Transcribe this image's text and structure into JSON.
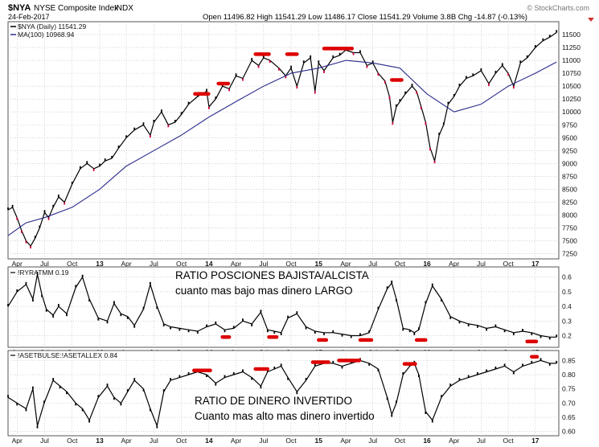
{
  "header": {
    "symbol": "$NYA",
    "name": "NYSE Composite Index",
    "exchange": "INDX",
    "date": "24-Feb-2017",
    "quote": "Open 11496.82  High 11541.29  Low 11486.17  Close 11541.29  Volume 3.8B  Chg -14.87 (-0.13%)",
    "watermark": "© StockCharts.com"
  },
  "colors": {
    "price": "#000000",
    "down": "#cc0033",
    "ma": "#2a2a8c",
    "ind": "#000000",
    "marker": "#dd0000",
    "grid": "#b8b8b8",
    "frame": "#555555",
    "axis_text": "#111111",
    "note_text": "#000000"
  },
  "chart_data": [
    {
      "type": "line",
      "panel": "main",
      "legend": [
        "$NYA (Daily) 11541.29",
        "MA(100) 10968.94"
      ],
      "ylim": [
        7150,
        11750
      ],
      "yticks": [
        7250,
        7500,
        7750,
        8000,
        8250,
        8500,
        8750,
        9000,
        9250,
        9500,
        9750,
        10000,
        10250,
        10500,
        10750,
        11000,
        11250,
        11500
      ],
      "x_tick_labels": [
        "Apr",
        "Jul",
        "Oct",
        "13",
        "Apr",
        "Jul",
        "Oct",
        "14",
        "Apr",
        "Jul",
        "Oct",
        "15",
        "Apr",
        "Jul",
        "Oct",
        "16",
        "Apr",
        "Jul",
        "Oct",
        "17"
      ],
      "x_tick_pos": [
        0.02,
        0.081,
        0.142,
        0.203,
        0.262,
        0.323,
        0.384,
        0.445,
        0.505,
        0.566,
        0.627,
        0.688,
        0.748,
        0.808,
        0.868,
        0.928,
        0.988,
        1.048,
        1.108,
        1.168
      ],
      "series": [
        {
          "name": "$NYA (Daily)",
          "x": [
            0.0,
            0.01,
            0.02,
            0.03,
            0.04,
            0.05,
            0.06,
            0.07,
            0.081,
            0.09,
            0.1,
            0.112,
            0.125,
            0.142,
            0.16,
            0.175,
            0.19,
            0.203,
            0.215,
            0.23,
            0.245,
            0.262,
            0.28,
            0.3,
            0.315,
            0.323,
            0.34,
            0.355,
            0.37,
            0.384,
            0.4,
            0.42,
            0.44,
            0.445,
            0.46,
            0.475,
            0.49,
            0.505,
            0.52,
            0.54,
            0.555,
            0.566,
            0.58,
            0.6,
            0.615,
            0.627,
            0.64,
            0.655,
            0.67,
            0.68,
            0.688,
            0.7,
            0.72,
            0.735,
            0.748,
            0.765,
            0.78,
            0.795,
            0.808,
            0.82,
            0.835,
            0.845,
            0.852,
            0.86,
            0.868,
            0.88,
            0.895,
            0.905,
            0.915,
            0.925,
            0.935,
            0.945,
            0.955,
            0.965,
            0.975,
            0.988,
            1.0,
            1.015,
            1.03,
            1.048,
            1.065,
            1.08,
            1.095,
            1.108,
            1.12,
            1.135,
            1.15,
            1.168,
            1.185,
            1.2,
            1.215
          ],
          "values": [
            8100,
            8150,
            7950,
            7700,
            7500,
            7400,
            7550,
            7750,
            8050,
            7950,
            8150,
            8350,
            8250,
            8600,
            8900,
            9000,
            8900,
            8950,
            9050,
            9100,
            9300,
            9500,
            9650,
            9750,
            9550,
            9800,
            10000,
            9750,
            9800,
            9950,
            10150,
            10300,
            10400,
            10100,
            10250,
            10500,
            10450,
            10700,
            10650,
            11000,
            10900,
            11050,
            11000,
            10850,
            10700,
            10850,
            10500,
            10950,
            11050,
            10400,
            10950,
            10800,
            11050,
            11100,
            11200,
            11150,
            11150,
            10900,
            10950,
            10750,
            10600,
            10300,
            9800,
            10100,
            10200,
            10350,
            10500,
            10400,
            10100,
            9800,
            9300,
            9050,
            9550,
            9750,
            10150,
            10300,
            10500,
            10650,
            10700,
            10800,
            10550,
            10750,
            10900,
            10750,
            10500,
            10950,
            11050,
            11250,
            11380,
            11450,
            11541
          ]
        },
        {
          "name": "MA(100)",
          "x": [
            0.0,
            0.04,
            0.081,
            0.142,
            0.203,
            0.262,
            0.323,
            0.384,
            0.445,
            0.505,
            0.566,
            0.627,
            0.688,
            0.748,
            0.808,
            0.868,
            0.928,
            0.988,
            1.048,
            1.108,
            1.168,
            1.215
          ],
          "values": [
            7600,
            7850,
            7950,
            8150,
            8500,
            8950,
            9250,
            9550,
            9900,
            10200,
            10500,
            10750,
            10850,
            11000,
            10950,
            10850,
            10350,
            10000,
            10150,
            10500,
            10750,
            10969
          ]
        }
      ],
      "markers": [
        {
          "x0": 0.414,
          "x1": 0.444,
          "y": 10350
        },
        {
          "x0": 0.466,
          "x1": 0.488,
          "y": 10550
        },
        {
          "x0": 0.548,
          "x1": 0.578,
          "y": 11120
        },
        {
          "x0": 0.618,
          "x1": 0.64,
          "y": 11120
        },
        {
          "x0": 0.7,
          "x1": 0.762,
          "y": 11230
        },
        {
          "x0": 0.85,
          "x1": 0.872,
          "y": 10620
        }
      ]
    },
    {
      "type": "line",
      "panel": "ryratmm",
      "legend": "!RYRATMM 0.19",
      "annotation_title": "RATIO POSCIONES BAJISTA/ALCISTA",
      "annotation_subtitle": "cuanto mas bajo mas dinero LARGO",
      "ylim": [
        0.12,
        0.67
      ],
      "yticks": [
        0.2,
        0.3,
        0.4,
        0.5,
        0.6
      ],
      "series": [
        {
          "name": "!RYRATMM",
          "x": [
            0.0,
            0.02,
            0.04,
            0.055,
            0.065,
            0.075,
            0.085,
            0.1,
            0.112,
            0.13,
            0.15,
            0.165,
            0.18,
            0.2,
            0.22,
            0.235,
            0.25,
            0.265,
            0.28,
            0.3,
            0.315,
            0.33,
            0.345,
            0.36,
            0.38,
            0.4,
            0.42,
            0.44,
            0.46,
            0.48,
            0.5,
            0.52,
            0.54,
            0.56,
            0.575,
            0.59,
            0.605,
            0.62,
            0.64,
            0.66,
            0.68,
            0.7,
            0.72,
            0.74,
            0.76,
            0.78,
            0.8,
            0.82,
            0.84,
            0.85,
            0.86,
            0.875,
            0.89,
            0.9,
            0.91,
            0.925,
            0.94,
            0.96,
            0.98,
            1.0,
            1.02,
            1.04,
            1.06,
            1.08,
            1.1,
            1.12,
            1.14,
            1.16,
            1.18,
            1.2,
            1.215
          ],
          "values": [
            0.4,
            0.5,
            0.55,
            0.45,
            0.62,
            0.48,
            0.38,
            0.34,
            0.4,
            0.35,
            0.53,
            0.6,
            0.45,
            0.32,
            0.3,
            0.42,
            0.35,
            0.33,
            0.27,
            0.38,
            0.55,
            0.4,
            0.28,
            0.26,
            0.25,
            0.24,
            0.23,
            0.26,
            0.28,
            0.24,
            0.25,
            0.3,
            0.28,
            0.36,
            0.24,
            0.23,
            0.22,
            0.32,
            0.35,
            0.26,
            0.23,
            0.22,
            0.22,
            0.21,
            0.2,
            0.2,
            0.22,
            0.38,
            0.52,
            0.56,
            0.45,
            0.25,
            0.24,
            0.22,
            0.24,
            0.42,
            0.54,
            0.45,
            0.33,
            0.3,
            0.28,
            0.27,
            0.25,
            0.26,
            0.24,
            0.22,
            0.23,
            0.22,
            0.2,
            0.19,
            0.19
          ]
        }
      ],
      "markers": [
        {
          "x0": 0.475,
          "x1": 0.49,
          "y": 0.19
        },
        {
          "x0": 0.578,
          "x1": 0.595,
          "y": 0.19
        },
        {
          "x0": 0.688,
          "x1": 0.705,
          "y": 0.17
        },
        {
          "x0": 0.78,
          "x1": 0.805,
          "y": 0.17
        },
        {
          "x0": 0.905,
          "x1": 0.925,
          "y": 0.17
        },
        {
          "x0": 1.15,
          "x1": 1.17,
          "y": 0.16
        }
      ]
    },
    {
      "type": "line",
      "panel": "asetbulse",
      "legend": "!ASETBULSE:!ASETALLEX 0.84",
      "annotation_title": "RATIO DE DINERO INVERTIDO",
      "annotation_subtitle": "Cuanto mas alto mas dinero invertido",
      "ylim": [
        0.585,
        0.885
      ],
      "yticks": [
        0.6,
        0.65,
        0.7,
        0.75,
        0.8,
        0.85
      ],
      "series": [
        {
          "name": "!ASETBULSE:!ASETALLEX",
          "x": [
            0.0,
            0.02,
            0.04,
            0.055,
            0.065,
            0.08,
            0.1,
            0.115,
            0.13,
            0.15,
            0.165,
            0.18,
            0.2,
            0.22,
            0.235,
            0.25,
            0.265,
            0.28,
            0.3,
            0.315,
            0.33,
            0.345,
            0.36,
            0.38,
            0.4,
            0.42,
            0.44,
            0.46,
            0.48,
            0.5,
            0.52,
            0.54,
            0.56,
            0.575,
            0.59,
            0.605,
            0.62,
            0.64,
            0.66,
            0.68,
            0.7,
            0.72,
            0.74,
            0.76,
            0.78,
            0.8,
            0.82,
            0.84,
            0.85,
            0.86,
            0.875,
            0.89,
            0.9,
            0.91,
            0.925,
            0.94,
            0.96,
            0.98,
            1.0,
            1.02,
            1.04,
            1.06,
            1.08,
            1.1,
            1.12,
            1.14,
            1.16,
            1.18,
            1.2,
            1.215
          ],
          "values": [
            0.72,
            0.7,
            0.68,
            0.75,
            0.62,
            0.7,
            0.78,
            0.76,
            0.74,
            0.7,
            0.68,
            0.64,
            0.72,
            0.76,
            0.72,
            0.7,
            0.74,
            0.78,
            0.75,
            0.68,
            0.62,
            0.74,
            0.78,
            0.79,
            0.8,
            0.81,
            0.8,
            0.77,
            0.79,
            0.8,
            0.81,
            0.79,
            0.76,
            0.81,
            0.82,
            0.83,
            0.79,
            0.74,
            0.78,
            0.83,
            0.84,
            0.84,
            0.83,
            0.84,
            0.85,
            0.84,
            0.82,
            0.72,
            0.66,
            0.7,
            0.8,
            0.83,
            0.84,
            0.8,
            0.67,
            0.64,
            0.72,
            0.76,
            0.78,
            0.79,
            0.8,
            0.81,
            0.82,
            0.83,
            0.81,
            0.83,
            0.84,
            0.85,
            0.84,
            0.84
          ]
        }
      ],
      "markers": [
        {
          "x0": 0.412,
          "x1": 0.448,
          "y": 0.815
        },
        {
          "x0": 0.548,
          "x1": 0.575,
          "y": 0.82
        },
        {
          "x0": 0.675,
          "x1": 0.71,
          "y": 0.844
        },
        {
          "x0": 0.733,
          "x1": 0.778,
          "y": 0.85
        },
        {
          "x0": 0.878,
          "x1": 0.902,
          "y": 0.838
        },
        {
          "x0": 1.16,
          "x1": 1.172,
          "y": 0.863
        }
      ]
    }
  ]
}
